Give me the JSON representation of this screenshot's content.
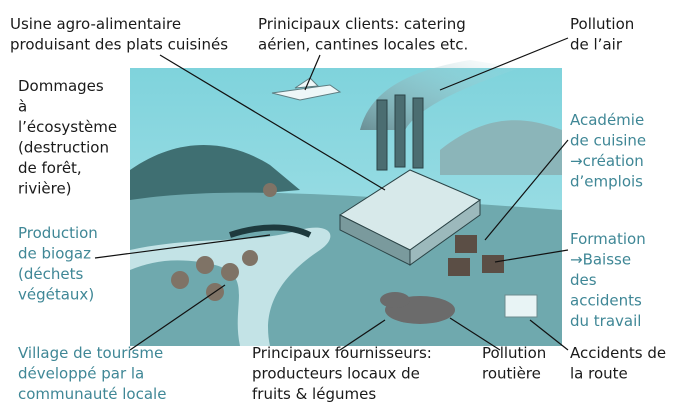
{
  "labels": [
    {
      "lines": [
        "Usine agro-alimentaire",
        "produisant des plats cuisinés"
      ]
    },
    {
      "lines": [
        "Prinicipaux clients: catering",
        "aérien, cantines locales etc."
      ]
    },
    {
      "lines": [
        "Pollution",
        "de l’air"
      ]
    },
    {
      "lines": [
        "Dommages",
        "à",
        "l’écosystème",
        "(destruction",
        "de forêt,",
        "rivière)"
      ]
    },
    {
      "lines": [
        "Production",
        "de biogaz",
        "(déchets",
        "végétaux)"
      ]
    },
    {
      "lines": [
        "Académie",
        "de cuisine",
        "→création",
        "d’emplois"
      ]
    },
    {
      "lines": [
        "Formation",
        "→Baisse",
        "des",
        "accidents",
        "du travail"
      ]
    },
    {
      "lines": [
        "Village de tourisme",
        "développé par la",
        "communauté locale"
      ]
    },
    {
      "lines": [
        "Principaux fournisseurs:",
        "producteurs locaux de",
        "fruits & légumes"
      ]
    },
    {
      "lines": [
        "Pollution",
        "routière"
      ]
    },
    {
      "lines": [
        "Accidents de",
        "la route"
      ]
    }
  ]
}
